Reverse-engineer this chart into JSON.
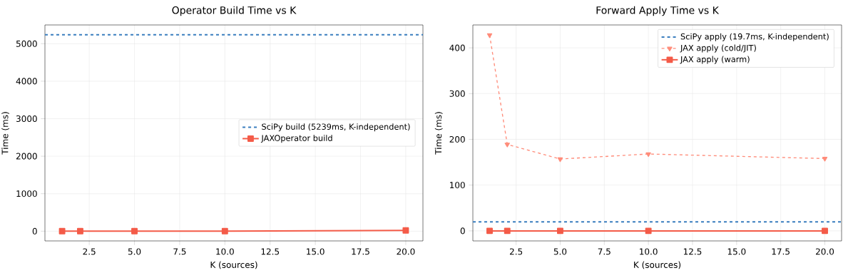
{
  "chart_data": [
    {
      "type": "line",
      "title": "Operator Build Time vs K",
      "xlabel": "K (sources)",
      "ylabel": "Time (ms)",
      "x": [
        1,
        2,
        5,
        10,
        20
      ],
      "xlim": [
        0.05,
        20.95
      ],
      "ylim": [
        -260,
        5500
      ],
      "xticks": [
        {
          "value": 2.5,
          "label": "2.5"
        },
        {
          "value": 5,
          "label": "5.0"
        },
        {
          "value": 7.5,
          "label": "7.5"
        },
        {
          "value": 10,
          "label": "10.0"
        },
        {
          "value": 12.5,
          "label": "12.5"
        },
        {
          "value": 15,
          "label": "15.0"
        },
        {
          "value": 17.5,
          "label": "17.5"
        },
        {
          "value": 20,
          "label": "20.0"
        }
      ],
      "yticks": [
        0,
        1000,
        2000,
        3000,
        4000,
        5000
      ],
      "grid": true,
      "legend": "center right",
      "ref_lines": [
        {
          "axis": "y",
          "value": 5239,
          "label": "SciPy build (5239ms, K-independent)",
          "color": "#3a7ebf",
          "line_style": "dashed"
        }
      ],
      "series": [
        {
          "name": "JAXOperator build",
          "color": "#f45b48",
          "values": [
            0,
            0,
            0,
            0,
            20
          ],
          "marker": "square",
          "line_style": "solid"
        }
      ]
    },
    {
      "type": "line",
      "title": "Forward Apply Time vs K",
      "xlabel": "K (sources)",
      "ylabel": "Time (ms)",
      "x": [
        1,
        2,
        5,
        10,
        20
      ],
      "xlim": [
        0.05,
        20.95
      ],
      "ylim": [
        -22,
        450
      ],
      "xticks": [
        {
          "value": 2.5,
          "label": "2.5"
        },
        {
          "value": 5,
          "label": "5.0"
        },
        {
          "value": 7.5,
          "label": "7.5"
        },
        {
          "value": 10,
          "label": "10.0"
        },
        {
          "value": 12.5,
          "label": "12.5"
        },
        {
          "value": 15,
          "label": "15.0"
        },
        {
          "value": 17.5,
          "label": "17.5"
        },
        {
          "value": 20,
          "label": "20.0"
        }
      ],
      "yticks": [
        0,
        100,
        200,
        300,
        400
      ],
      "grid": true,
      "legend": "top right",
      "ref_lines": [
        {
          "axis": "y",
          "value": 19.7,
          "label": "SciPy apply (19.7ms, K-independent)",
          "color": "#3a7ebf",
          "line_style": "dashed"
        }
      ],
      "series": [
        {
          "name": "JAX apply (cold/JIT)",
          "color": "#ff8c7a",
          "values": [
            428,
            189,
            157,
            168,
            158
          ],
          "marker": "triangle",
          "line_style": "dashed"
        },
        {
          "name": "JAX apply (warm)",
          "color": "#f45b48",
          "values": [
            0,
            0,
            0,
            0,
            0
          ],
          "marker": "square",
          "line_style": "solid"
        }
      ]
    }
  ]
}
